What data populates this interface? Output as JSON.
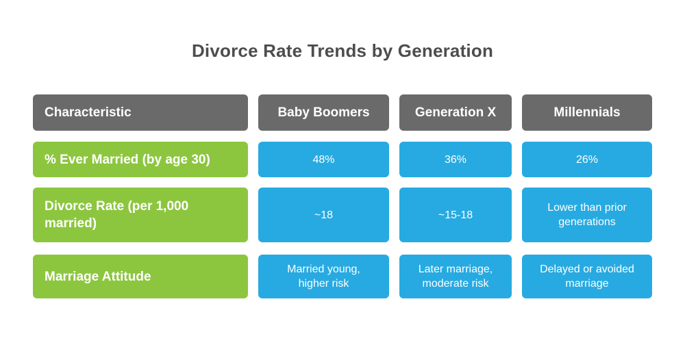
{
  "title": "Divorce Rate Trends by Generation",
  "colors": {
    "page-bg": "#FFFFFF",
    "title-text": "#4D4D4D",
    "header-bg": "#6A6A6A",
    "label-bg": "#8CC63F",
    "value-bg": "#27AAE1",
    "cell-text": "#FFFFFF"
  },
  "chart_data": {
    "type": "table",
    "title": "Divorce Rate Trends by Generation",
    "columns": [
      "Characteristic",
      "Baby Boomers",
      "Generation X",
      "Millennials"
    ],
    "rows": [
      {
        "characteristic": "% Ever Married (by age 30)",
        "values": [
          "48%",
          "36%",
          "26%"
        ]
      },
      {
        "characteristic": "Divorce Rate (per 1,000 married)",
        "values": [
          "~18",
          "~15-18",
          "Lower than prior\ngenerations"
        ]
      },
      {
        "characteristic": "Marriage Attitude",
        "values": [
          "Married young,\nhigher risk",
          "Later marriage,\nmoderate risk",
          "Delayed or avoided\nmarriage"
        ]
      }
    ],
    "legend": "none",
    "grid": "off"
  }
}
